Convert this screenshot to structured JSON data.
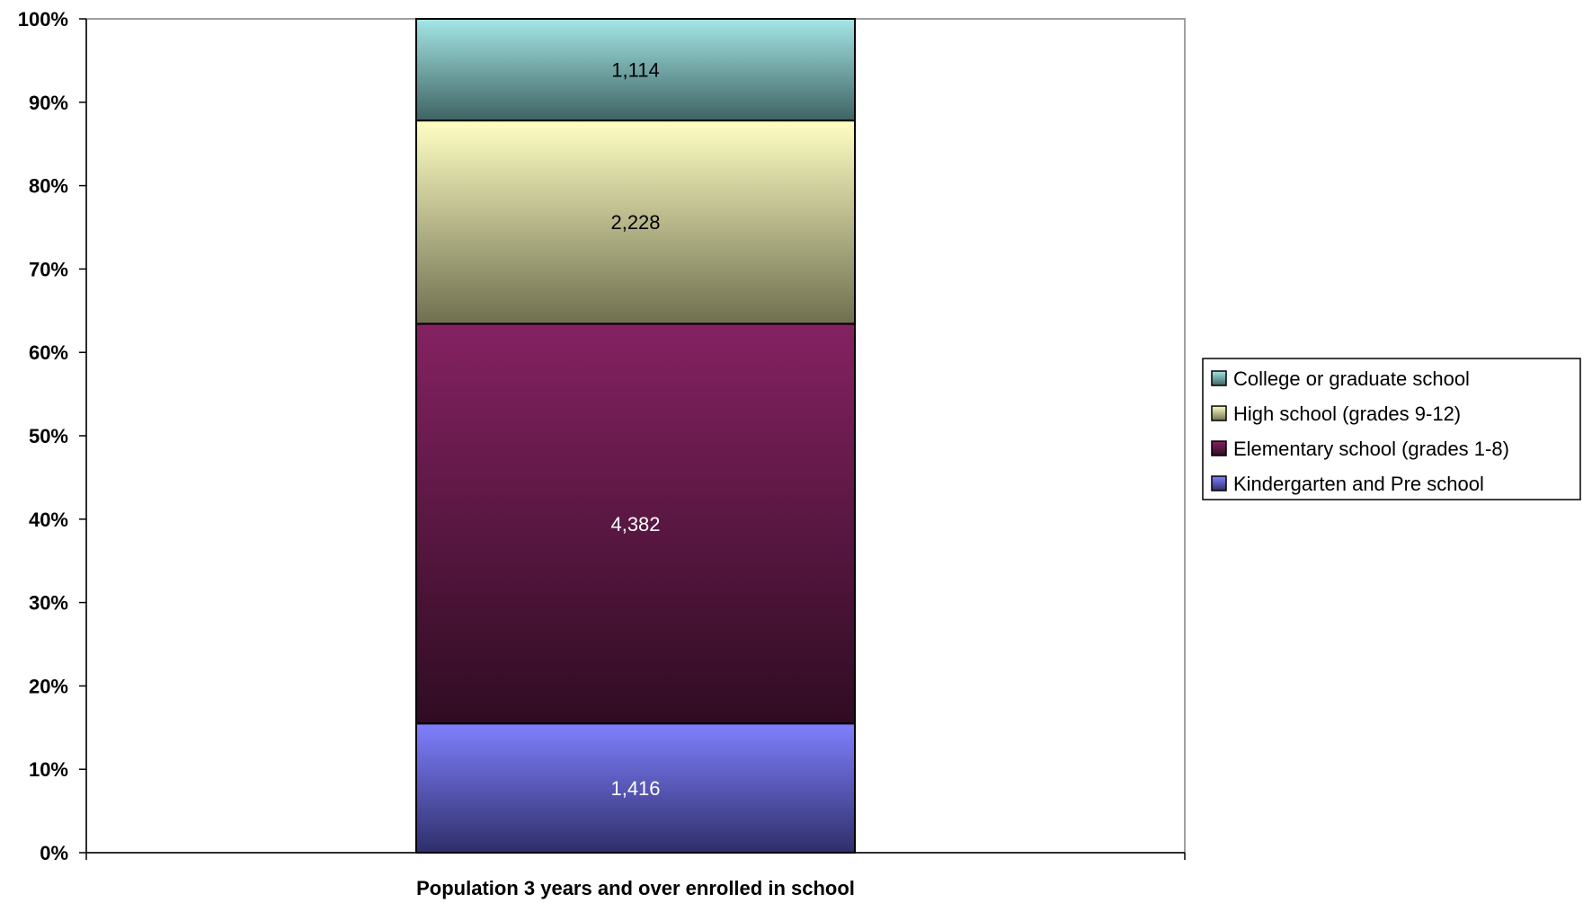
{
  "chart_data": {
    "type": "bar",
    "stacked": "percent",
    "categories": [
      "Population 3 years and over enrolled in school"
    ],
    "series": [
      {
        "name": "Kindergarten and Pre school",
        "values": [
          1416
        ],
        "color_top": "#8080ff",
        "color_bottom": "#2e2e6a",
        "label_color": "#ffffff"
      },
      {
        "name": "Elementary school (grades 1-8)",
        "values": [
          4382
        ],
        "color_top": "#852262",
        "color_bottom": "#2f0c22",
        "label_color": "#ffffff"
      },
      {
        "name": "High school (grades 9-12)",
        "values": [
          2228
        ],
        "color_top": "#ffffc4",
        "color_bottom": "#6f6f50",
        "label_color": "#000000"
      },
      {
        "name": "College or graduate school",
        "values": [
          1114
        ],
        "color_top": "#a5e6e6",
        "color_bottom": "#3e6363",
        "label_color": "#000000"
      }
    ],
    "data_labels": [
      "1,416",
      "4,382",
      "2,228",
      "1,114"
    ],
    "ylim": [
      0,
      100
    ],
    "yticks": [
      "0%",
      "10%",
      "20%",
      "30%",
      "40%",
      "50%",
      "60%",
      "70%",
      "80%",
      "90%",
      "100%"
    ],
    "legend": {
      "position": "right",
      "order": [
        "College or graduate school",
        "High school (grades 9-12)",
        "Elementary school (grades 1-8)",
        "Kindergarten and Pre school"
      ]
    },
    "grid": false
  }
}
